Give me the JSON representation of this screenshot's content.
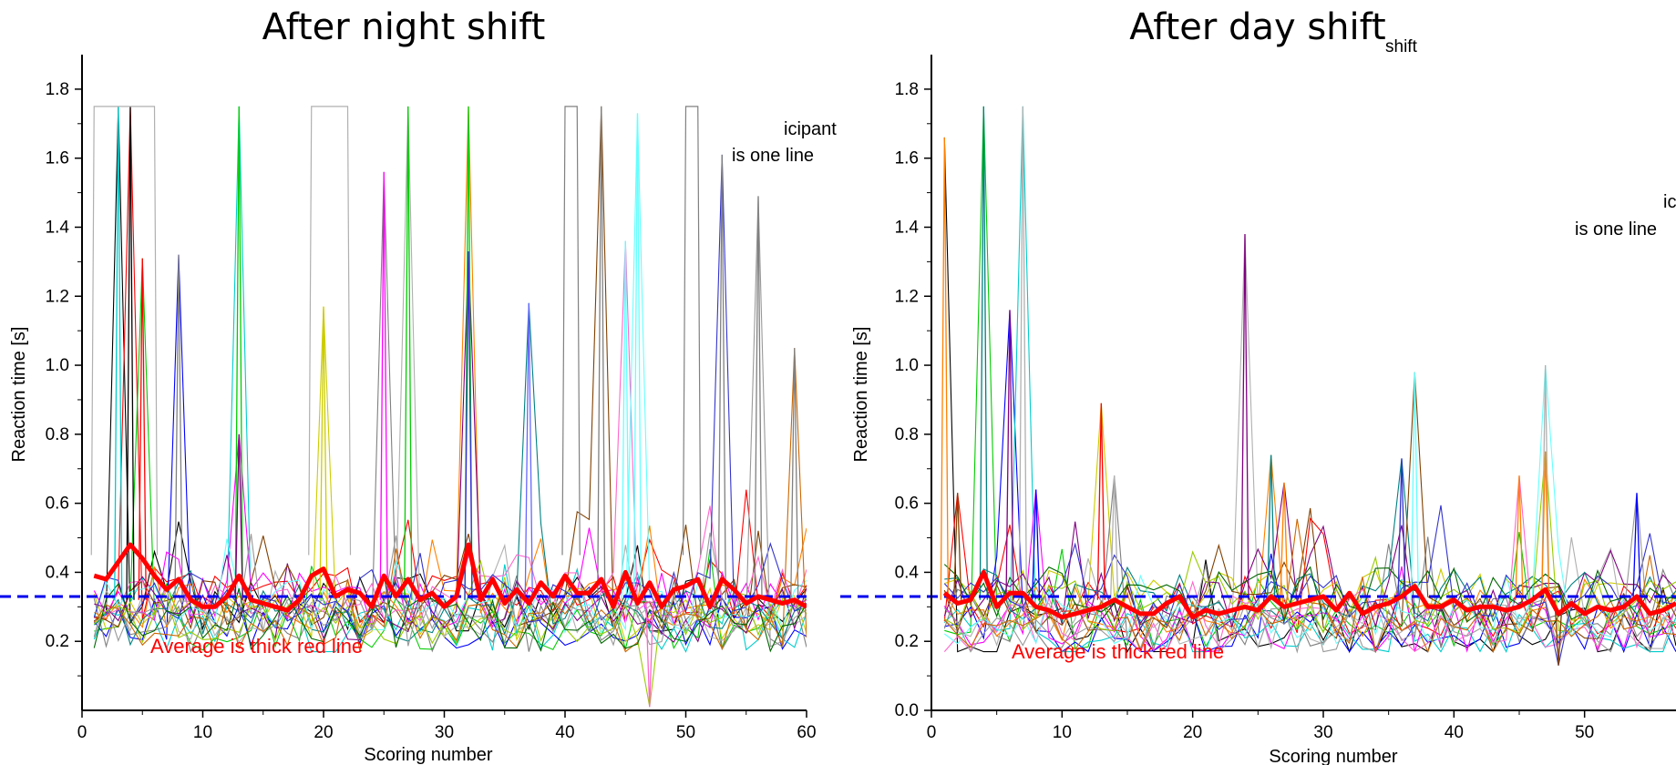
{
  "colors": {
    "average": "#ff0000",
    "baseline": "#0000ee",
    "participants": [
      "#000000",
      "#ff0000",
      "#00cc00",
      "#0000ff",
      "#00cccc",
      "#ff00ff",
      "#cccc00",
      "#808080",
      "#b0b0b0",
      "#ff8000",
      "#800080",
      "#008080",
      "#804000",
      "#ff66cc",
      "#66ffff",
      "#99cc00",
      "#3333cc",
      "#999999",
      "#cc6600",
      "#006600",
      "#333333",
      "#6666ff"
    ]
  },
  "chart_data": [
    {
      "type": "line",
      "title": "After night shift",
      "xlabel": "Scoring number",
      "ylabel": "Reaction time [s]",
      "xlim": [
        0,
        60
      ],
      "ylim": [
        0,
        1.9
      ],
      "x_ticks": [
        "0",
        "10",
        "20",
        "30",
        "40",
        "50",
        "60"
      ],
      "y_ticks": [
        "0.2",
        "0.4",
        "0.6",
        "0.8",
        "1.0",
        "1.2",
        "1.4",
        "1.6",
        "1.8"
      ],
      "annotations": [
        "icipant",
        "is one line"
      ],
      "average_note": "Average is thick red line",
      "reference_line_y": 0.33,
      "average": {
        "x": [
          1,
          2,
          3,
          4,
          5,
          6,
          7,
          8,
          9,
          10,
          11,
          12,
          13,
          14,
          15,
          16,
          17,
          18,
          19,
          20,
          21,
          22,
          23,
          24,
          25,
          26,
          27,
          28,
          29,
          30,
          31,
          32,
          33,
          34,
          35,
          36,
          37,
          38,
          39,
          40,
          41,
          42,
          43,
          44,
          45,
          46,
          47,
          48,
          49,
          50,
          51,
          52,
          53,
          54,
          55,
          56,
          57,
          58,
          59,
          60
        ],
        "y": [
          0.39,
          0.38,
          0.43,
          0.48,
          0.44,
          0.39,
          0.35,
          0.38,
          0.32,
          0.3,
          0.3,
          0.33,
          0.39,
          0.32,
          0.31,
          0.3,
          0.29,
          0.32,
          0.39,
          0.41,
          0.33,
          0.35,
          0.34,
          0.3,
          0.39,
          0.33,
          0.38,
          0.32,
          0.34,
          0.3,
          0.33,
          0.48,
          0.32,
          0.38,
          0.31,
          0.35,
          0.31,
          0.37,
          0.33,
          0.39,
          0.34,
          0.34,
          0.38,
          0.3,
          0.4,
          0.31,
          0.37,
          0.3,
          0.35,
          0.36,
          0.38,
          0.3,
          0.38,
          0.35,
          0.31,
          0.33,
          0.32,
          0.31,
          0.32,
          0.3
        ]
      },
      "spikes": [
        {
          "x": 3,
          "y": 1.75,
          "color_index": 4
        },
        {
          "x": 4,
          "y": 1.75,
          "color_index": 0
        },
        {
          "x": 5,
          "y": 1.31,
          "color_index": 1
        },
        {
          "x": 8,
          "y": 1.32,
          "color_index": 7
        },
        {
          "x": 13,
          "y": 1.75,
          "color_index": 2
        },
        {
          "x": 13,
          "y": 0.8,
          "color_index": 10
        },
        {
          "x": 20,
          "y": 1.17,
          "color_index": 6
        },
        {
          "x": 25,
          "y": 1.56,
          "color_index": 5
        },
        {
          "x": 27,
          "y": 1.75,
          "color_index": 2
        },
        {
          "x": 32,
          "y": 1.75,
          "color_index": 2
        },
        {
          "x": 32,
          "y": 1.33,
          "color_index": 16
        },
        {
          "x": 37,
          "y": 1.18,
          "color_index": 21
        },
        {
          "x": 43,
          "y": 1.75,
          "color_index": 7
        },
        {
          "x": 45,
          "y": 1.36,
          "color_index": 14
        },
        {
          "x": 46,
          "y": 1.73,
          "color_index": 14
        },
        {
          "x": 47,
          "y": 0.01,
          "color_index": 13
        },
        {
          "x": 53,
          "y": 1.61,
          "color_index": 7
        },
        {
          "x": 56,
          "y": 1.49,
          "color_index": 7
        },
        {
          "x": 59,
          "y": 1.05,
          "color_index": 7
        }
      ],
      "plateaus": [
        {
          "x": [
            1,
            2,
            3,
            4,
            5,
            6
          ],
          "y": [
            1.75,
            1.75,
            1.75,
            1.75,
            1.75,
            1.75
          ],
          "color_index": 8
        },
        {
          "x": [
            19,
            20,
            21,
            22
          ],
          "y": [
            1.75,
            1.75,
            1.75,
            1.75
          ],
          "color_index": 8
        },
        {
          "x": [
            40,
            41
          ],
          "y": [
            1.75,
            1.75
          ],
          "color_index": 7
        },
        {
          "x": [
            50,
            51
          ],
          "y": [
            1.75,
            1.75
          ],
          "color_index": 7
        }
      ]
    },
    {
      "type": "line",
      "title": "After day shift",
      "subtitle": "shift",
      "xlabel": "Scoring number",
      "ylabel": "Reaction time [s]",
      "xlim": [
        0,
        57
      ],
      "ylim": [
        0,
        1.9
      ],
      "x_ticks": [
        "0",
        "10",
        "20",
        "30",
        "40",
        "50"
      ],
      "y_ticks": [
        "0.0",
        "0.2",
        "0.4",
        "0.6",
        "0.8",
        "1.0",
        "1.2",
        "1.4",
        "1.6",
        "1.8"
      ],
      "annotations": [
        "ic",
        "is one line"
      ],
      "average_note": "Average is thick red line",
      "reference_line_y": 0.33,
      "average": {
        "x": [
          1,
          2,
          3,
          4,
          5,
          6,
          7,
          8,
          9,
          10,
          11,
          12,
          13,
          14,
          15,
          16,
          17,
          18,
          19,
          20,
          21,
          22,
          23,
          24,
          25,
          26,
          27,
          28,
          29,
          30,
          31,
          32,
          33,
          34,
          35,
          36,
          37,
          38,
          39,
          40,
          41,
          42,
          43,
          44,
          45,
          46,
          47,
          48,
          49,
          50,
          51,
          52,
          53,
          54,
          55,
          56,
          57
        ],
        "y": [
          0.34,
          0.31,
          0.32,
          0.4,
          0.3,
          0.34,
          0.34,
          0.3,
          0.29,
          0.27,
          0.28,
          0.29,
          0.3,
          0.32,
          0.3,
          0.28,
          0.28,
          0.31,
          0.33,
          0.27,
          0.29,
          0.28,
          0.29,
          0.3,
          0.29,
          0.33,
          0.3,
          0.31,
          0.32,
          0.33,
          0.29,
          0.34,
          0.28,
          0.3,
          0.31,
          0.33,
          0.36,
          0.3,
          0.3,
          0.32,
          0.29,
          0.3,
          0.3,
          0.29,
          0.3,
          0.32,
          0.35,
          0.28,
          0.31,
          0.28,
          0.3,
          0.29,
          0.3,
          0.33,
          0.28,
          0.29,
          0.31
        ]
      },
      "spikes": [
        {
          "x": 1,
          "y": 1.66,
          "color_index": 9
        },
        {
          "x": 2,
          "y": 0.63,
          "color_index": 12
        },
        {
          "x": 4,
          "y": 1.75,
          "color_index": 11
        },
        {
          "x": 6,
          "y": 1.16,
          "color_index": 10
        },
        {
          "x": 7,
          "y": 1.75,
          "color_index": 8
        },
        {
          "x": 8,
          "y": 0.64,
          "color_index": 3
        },
        {
          "x": 13,
          "y": 0.89,
          "color_index": 1
        },
        {
          "x": 14,
          "y": 0.68,
          "color_index": 8
        },
        {
          "x": 24,
          "y": 1.38,
          "color_index": 10
        },
        {
          "x": 26,
          "y": 0.74,
          "color_index": 11
        },
        {
          "x": 27,
          "y": 0.66,
          "color_index": 9
        },
        {
          "x": 36,
          "y": 0.73,
          "color_index": 16
        },
        {
          "x": 37,
          "y": 0.98,
          "color_index": 14
        },
        {
          "x": 45,
          "y": 0.68,
          "color_index": 9
        },
        {
          "x": 47,
          "y": 1.0,
          "color_index": 8
        },
        {
          "x": 47,
          "y": 0.75,
          "color_index": 9
        },
        {
          "x": 48,
          "y": 0.13,
          "color_index": 12
        },
        {
          "x": 54,
          "y": 0.63,
          "color_index": 3
        }
      ],
      "plateaus": []
    }
  ]
}
